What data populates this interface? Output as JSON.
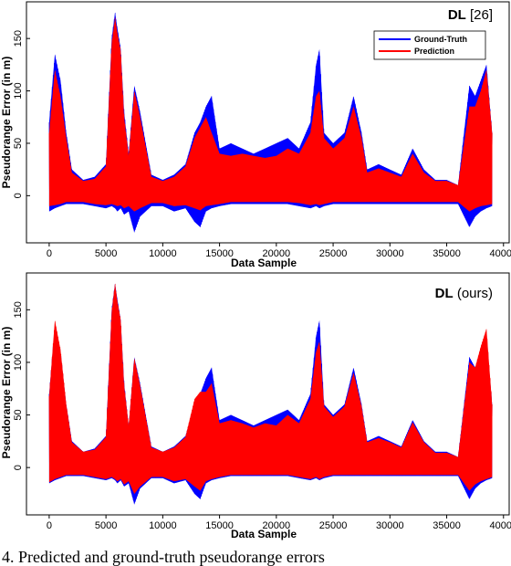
{
  "caption": "4. Predicted and ground-truth pseudorange errors",
  "chart_data": [
    {
      "type": "line",
      "title_bold": "DL",
      "title_rest": " [26]",
      "xlabel": "Data Sample",
      "ylabel": "Pseudorange Error  (in m)",
      "xlim": [
        -2000,
        40500
      ],
      "ylim": [
        -45,
        185
      ],
      "xticks": [
        0,
        5000,
        10000,
        15000,
        20000,
        25000,
        30000,
        35000,
        40000
      ],
      "yticks": [
        0,
        50,
        100,
        150
      ],
      "grid": false,
      "legend_position": "top-right",
      "series": [
        {
          "name": "Ground-Truth",
          "color": "#0000ff",
          "x": [
            0,
            500,
            1000,
            1500,
            2000,
            3000,
            4000,
            5000,
            5500,
            5800,
            6000,
            6300,
            6600,
            7000,
            7500,
            8000,
            9000,
            10000,
            11000,
            12000,
            12800,
            13300,
            13800,
            14300,
            15000,
            16000,
            17000,
            18000,
            19000,
            20000,
            21000,
            22000,
            23000,
            23500,
            23800,
            24200,
            25000,
            26000,
            26800,
            27500,
            28000,
            29000,
            30000,
            31000,
            32000,
            33000,
            34000,
            35000,
            36000,
            37000,
            37500,
            38000,
            38500,
            39000
          ],
          "upper": [
            70,
            135,
            110,
            60,
            25,
            15,
            18,
            30,
            150,
            175,
            160,
            140,
            80,
            40,
            105,
            80,
            20,
            15,
            20,
            30,
            60,
            70,
            85,
            95,
            45,
            50,
            45,
            40,
            45,
            50,
            55,
            45,
            70,
            125,
            140,
            60,
            50,
            60,
            95,
            60,
            25,
            30,
            25,
            20,
            45,
            25,
            15,
            15,
            10,
            105,
            95,
            110,
            125,
            60
          ],
          "lower": [
            -15,
            -12,
            -10,
            -8,
            -8,
            -8,
            -10,
            -12,
            -10,
            -12,
            -15,
            -12,
            -18,
            -15,
            -35,
            -20,
            -10,
            -10,
            -15,
            -12,
            -25,
            -30,
            -15,
            -12,
            -10,
            -8,
            -8,
            -8,
            -8,
            -8,
            -8,
            -10,
            -12,
            -10,
            -12,
            -10,
            -8,
            -8,
            -8,
            -8,
            -8,
            -8,
            -8,
            -8,
            -8,
            -8,
            -8,
            -8,
            -8,
            -30,
            -20,
            -15,
            -12,
            -10
          ]
        },
        {
          "name": "Prediction",
          "color": "#ff0000",
          "x": [
            0,
            500,
            1000,
            1500,
            2000,
            3000,
            4000,
            5000,
            5500,
            5800,
            6000,
            6300,
            6600,
            7000,
            7500,
            8000,
            9000,
            10000,
            11000,
            12000,
            12800,
            13300,
            13800,
            14300,
            15000,
            16000,
            17000,
            18000,
            19000,
            20000,
            21000,
            22000,
            23000,
            23500,
            23800,
            24200,
            25000,
            26000,
            26800,
            27500,
            28000,
            29000,
            30000,
            31000,
            32000,
            33000,
            34000,
            35000,
            36000,
            37000,
            37500,
            38000,
            38500,
            39000
          ],
          "upper": [
            60,
            120,
            95,
            55,
            22,
            14,
            16,
            28,
            145,
            170,
            155,
            138,
            75,
            38,
            100,
            75,
            18,
            14,
            18,
            28,
            55,
            65,
            75,
            60,
            40,
            38,
            40,
            38,
            36,
            38,
            45,
            40,
            60,
            95,
            100,
            55,
            45,
            55,
            85,
            55,
            22,
            26,
            22,
            18,
            40,
            22,
            14,
            14,
            10,
            85,
            85,
            100,
            120,
            60
          ],
          "lower": [
            -10,
            -9,
            -8,
            -6,
            -6,
            -6,
            -8,
            -9,
            -8,
            -9,
            -10,
            -9,
            -12,
            -10,
            -15,
            -12,
            -7,
            -7,
            -10,
            -9,
            -12,
            -14,
            -10,
            -9,
            -8,
            -6,
            -6,
            -6,
            -6,
            -6,
            -6,
            -7,
            -9,
            -8,
            -9,
            -8,
            -6,
            -6,
            -6,
            -6,
            -6,
            -6,
            -6,
            -6,
            -6,
            -6,
            -6,
            -6,
            -6,
            -15,
            -12,
            -10,
            -9,
            -8
          ]
        }
      ]
    },
    {
      "type": "line",
      "title_bold": "DL",
      "title_rest": " (ours)",
      "xlabel": "Data Sample",
      "ylabel": "Pseudorange Error  (in m)",
      "xlim": [
        -2000,
        40500
      ],
      "ylim": [
        -45,
        185
      ],
      "xticks": [
        0,
        5000,
        10000,
        15000,
        20000,
        25000,
        30000,
        35000,
        40000
      ],
      "yticks": [
        0,
        50,
        100,
        150
      ],
      "grid": false,
      "series": [
        {
          "name": "Ground-Truth",
          "color": "#0000ff",
          "x": [
            0,
            500,
            1000,
            1500,
            2000,
            3000,
            4000,
            5000,
            5500,
            5800,
            6000,
            6300,
            6600,
            7000,
            7500,
            8000,
            9000,
            10000,
            11000,
            12000,
            12800,
            13300,
            13800,
            14300,
            15000,
            16000,
            17000,
            18000,
            19000,
            20000,
            21000,
            22000,
            23000,
            23500,
            23800,
            24200,
            25000,
            26000,
            26800,
            27500,
            28000,
            29000,
            30000,
            31000,
            32000,
            33000,
            34000,
            35000,
            36000,
            37000,
            37500,
            38000,
            38500,
            39000
          ],
          "upper": [
            70,
            135,
            110,
            60,
            25,
            15,
            18,
            30,
            150,
            175,
            160,
            140,
            80,
            40,
            105,
            80,
            20,
            15,
            20,
            30,
            60,
            70,
            85,
            95,
            45,
            50,
            45,
            40,
            45,
            50,
            55,
            45,
            70,
            125,
            140,
            60,
            50,
            60,
            95,
            60,
            25,
            30,
            25,
            20,
            45,
            25,
            15,
            15,
            10,
            105,
            95,
            110,
            125,
            60
          ],
          "lower": [
            -15,
            -12,
            -10,
            -8,
            -8,
            -8,
            -10,
            -12,
            -10,
            -12,
            -15,
            -12,
            -18,
            -15,
            -35,
            -20,
            -10,
            -10,
            -15,
            -12,
            -25,
            -30,
            -15,
            -12,
            -10,
            -8,
            -8,
            -8,
            -8,
            -8,
            -8,
            -10,
            -12,
            -10,
            -12,
            -10,
            -8,
            -8,
            -8,
            -8,
            -8,
            -8,
            -8,
            -8,
            -8,
            -8,
            -8,
            -8,
            -8,
            -30,
            -20,
            -15,
            -12,
            -10
          ]
        },
        {
          "name": "Prediction",
          "color": "#ff0000",
          "x": [
            0,
            500,
            1000,
            1500,
            2000,
            3000,
            4000,
            5000,
            5500,
            5800,
            6000,
            6300,
            6600,
            7000,
            7500,
            8000,
            9000,
            10000,
            11000,
            12000,
            12800,
            13300,
            13800,
            14300,
            15000,
            16000,
            17000,
            18000,
            19000,
            20000,
            21000,
            22000,
            23000,
            23500,
            23800,
            24200,
            25000,
            26000,
            26800,
            27500,
            28000,
            29000,
            30000,
            31000,
            32000,
            33000,
            34000,
            35000,
            36000,
            37000,
            37500,
            38000,
            38500,
            39000
          ],
          "upper": [
            68,
            140,
            112,
            60,
            24,
            15,
            17,
            29,
            148,
            175,
            158,
            140,
            78,
            40,
            104,
            78,
            19,
            15,
            19,
            29,
            65,
            72,
            72,
            80,
            42,
            45,
            42,
            38,
            42,
            40,
            50,
            42,
            65,
            110,
            120,
            58,
            48,
            58,
            90,
            58,
            24,
            28,
            24,
            19,
            43,
            24,
            14,
            14,
            10,
            100,
            95,
            115,
            132,
            60
          ],
          "lower": [
            -14,
            -11,
            -9,
            -7,
            -7,
            -7,
            -9,
            -11,
            -9,
            -11,
            -13,
            -11,
            -16,
            -13,
            -25,
            -18,
            -9,
            -9,
            -13,
            -11,
            -18,
            -22,
            -13,
            -11,
            -9,
            -7,
            -7,
            -7,
            -7,
            -7,
            -7,
            -9,
            -11,
            -9,
            -11,
            -9,
            -7,
            -7,
            -7,
            -7,
            -7,
            -7,
            -7,
            -7,
            -7,
            -7,
            -7,
            -7,
            -7,
            -22,
            -16,
            -13,
            -11,
            -9
          ]
        }
      ]
    }
  ]
}
